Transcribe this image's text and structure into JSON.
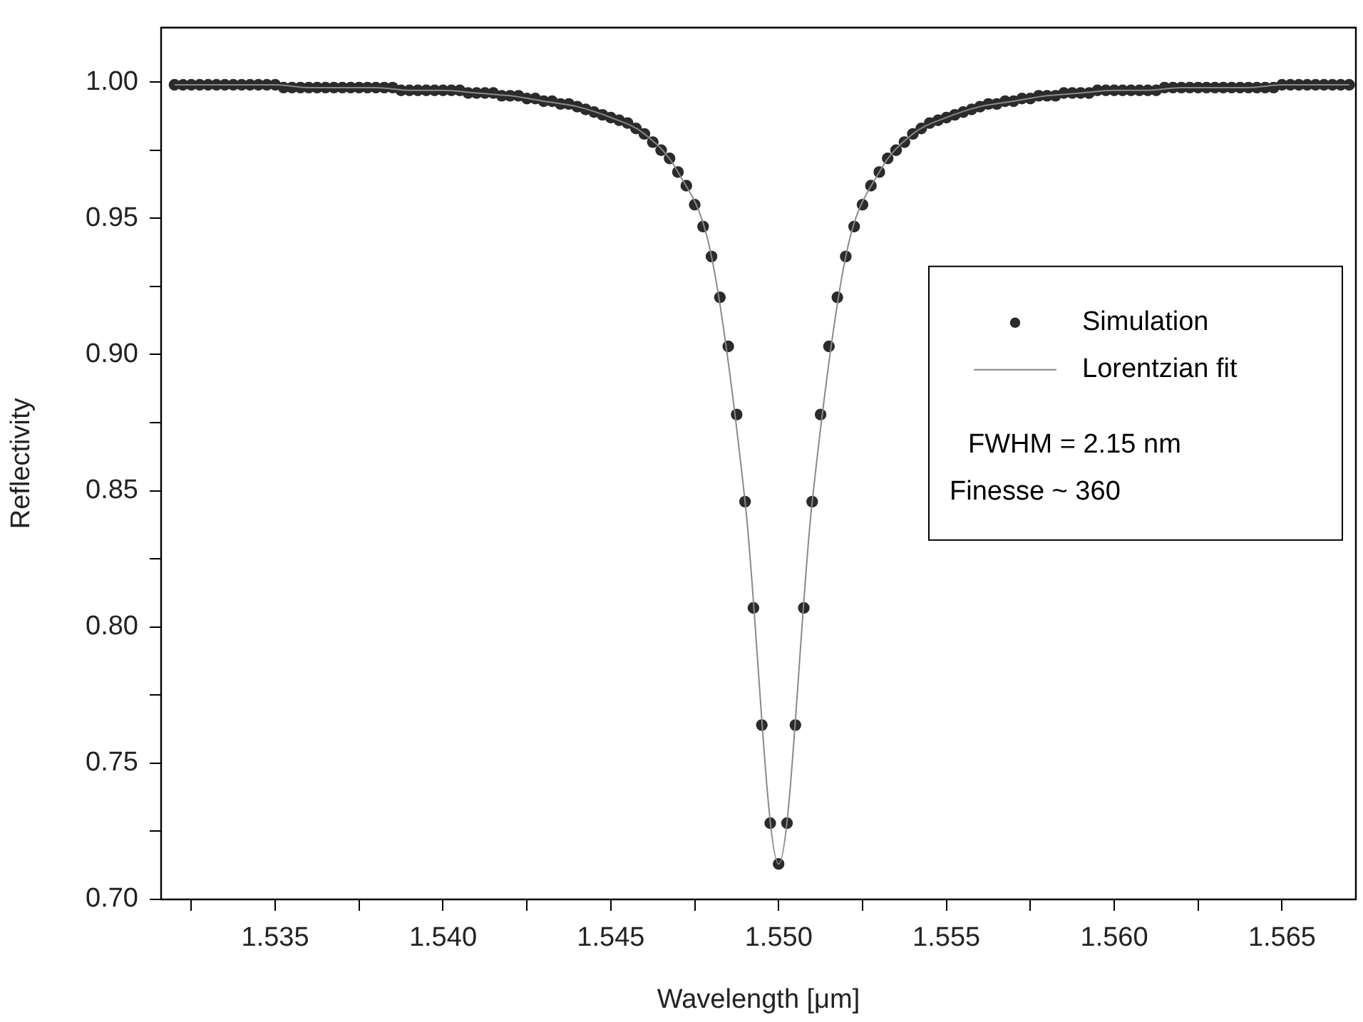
{
  "chart_data": {
    "type": "scatter",
    "xlabel": "Wavelength [μm]",
    "ylabel": "Reflectivity",
    "xlim": [
      1.5316,
      1.5672
    ],
    "ylim": [
      0.7,
      1.02
    ],
    "xticks": [
      {
        "value": 1.5325,
        "label": null
      },
      1.535,
      {
        "value": 1.5375,
        "label": null
      },
      {
        "value": 1.54,
        "label": "1.540"
      },
      {
        "value": 1.5425,
        "label": null
      },
      1.545,
      {
        "value": 1.5475,
        "label": null
      },
      {
        "value": 1.55,
        "label": "1.550"
      },
      {
        "value": 1.5525,
        "label": null
      },
      1.555,
      {
        "value": 1.5575,
        "label": null
      },
      {
        "value": 1.56,
        "label": "1.560"
      },
      {
        "value": 1.5625,
        "label": null
      },
      1.565
    ],
    "yticks": [
      {
        "value": 0.7,
        "label": "0.70"
      },
      {
        "value": 0.725,
        "label": null
      },
      0.75,
      {
        "value": 0.775,
        "label": null
      },
      {
        "value": 0.8,
        "label": "0.80"
      },
      {
        "value": 0.825,
        "label": null
      },
      0.85,
      {
        "value": 0.875,
        "label": null
      },
      {
        "value": 0.9,
        "label": "0.90"
      },
      {
        "value": 0.925,
        "label": null
      },
      0.95,
      {
        "value": 0.975,
        "label": null
      },
      {
        "value": 1,
        "label": "1.00"
      }
    ],
    "grid": false,
    "legend": "right",
    "annotations": [
      "FWHM = 2.15 nm",
      "Finesse ~ 360"
    ],
    "series": [
      {
        "name": "Simulation",
        "type": "scatter",
        "marker": "circle",
        "color": "#2b2b2b",
        "x": [
          1.532,
          1.53225,
          1.5325,
          1.53275,
          1.533,
          1.53325,
          1.5335,
          1.53375,
          1.534,
          1.53425,
          1.5345,
          1.53475,
          1.535,
          1.53525,
          1.5355,
          1.53575,
          1.536,
          1.53625,
          1.5365,
          1.53675,
          1.537,
          1.53725,
          1.5375,
          1.53775,
          1.538,
          1.53825,
          1.5385,
          1.53875,
          1.539,
          1.53925,
          1.5395,
          1.53975,
          1.54,
          1.54025,
          1.5405,
          1.54075,
          1.541,
          1.54125,
          1.5415,
          1.54175,
          1.542,
          1.54225,
          1.5425,
          1.54275,
          1.543,
          1.54325,
          1.5435,
          1.54375,
          1.544,
          1.54425,
          1.5445,
          1.54475,
          1.545,
          1.54525,
          1.5455,
          1.54575,
          1.546,
          1.54625,
          1.5465,
          1.54675,
          1.547,
          1.54725,
          1.5475,
          1.54775,
          1.548,
          1.54825,
          1.5485,
          1.54875,
          1.549,
          1.54925,
          1.5495,
          1.54975,
          1.55,
          1.55025,
          1.5505,
          1.55075,
          1.551,
          1.55125,
          1.5515,
          1.55175,
          1.552,
          1.55225,
          1.5525,
          1.55275,
          1.553,
          1.55325,
          1.5535,
          1.55375,
          1.554,
          1.55425,
          1.5545,
          1.55475,
          1.555,
          1.55525,
          1.5555,
          1.55575,
          1.556,
          1.55625,
          1.5565,
          1.55675,
          1.557,
          1.55725,
          1.5575,
          1.55775,
          1.558,
          1.55825,
          1.5585,
          1.55875,
          1.559,
          1.55925,
          1.5595,
          1.55975,
          1.56,
          1.56025,
          1.5605,
          1.56075,
          1.561,
          1.56125,
          1.5615,
          1.56175,
          1.562,
          1.56225,
          1.5625,
          1.56275,
          1.563,
          1.56325,
          1.5635,
          1.56375,
          1.564,
          1.56425,
          1.5645,
          1.56475,
          1.565,
          1.56525,
          1.5655,
          1.56575,
          1.566,
          1.56625,
          1.5665,
          1.56675,
          1.567
        ],
        "values": [
          0.999,
          0.999,
          0.999,
          0.999,
          0.999,
          0.999,
          0.999,
          0.999,
          0.999,
          0.999,
          0.999,
          0.999,
          0.999,
          0.998,
          0.998,
          0.998,
          0.998,
          0.998,
          0.998,
          0.998,
          0.998,
          0.998,
          0.998,
          0.998,
          0.998,
          0.998,
          0.998,
          0.997,
          0.997,
          0.997,
          0.997,
          0.997,
          0.997,
          0.997,
          0.997,
          0.996,
          0.996,
          0.996,
          0.996,
          0.995,
          0.995,
          0.995,
          0.994,
          0.994,
          0.993,
          0.993,
          0.992,
          0.992,
          0.991,
          0.99,
          0.989,
          0.988,
          0.987,
          0.986,
          0.985,
          0.983,
          0.981,
          0.978,
          0.975,
          0.972,
          0.967,
          0.962,
          0.955,
          0.947,
          0.936,
          0.921,
          0.903,
          0.878,
          0.846,
          0.807,
          0.764,
          0.728,
          0.713,
          0.728,
          0.764,
          0.807,
          0.846,
          0.878,
          0.903,
          0.921,
          0.936,
          0.947,
          0.955,
          0.962,
          0.967,
          0.972,
          0.975,
          0.978,
          0.981,
          0.983,
          0.985,
          0.986,
          0.987,
          0.988,
          0.989,
          0.99,
          0.991,
          0.992,
          0.992,
          0.993,
          0.993,
          0.994,
          0.994,
          0.995,
          0.995,
          0.995,
          0.996,
          0.996,
          0.996,
          0.996,
          0.997,
          0.997,
          0.997,
          0.997,
          0.997,
          0.997,
          0.997,
          0.997,
          0.998,
          0.998,
          0.998,
          0.998,
          0.998,
          0.998,
          0.998,
          0.998,
          0.998,
          0.998,
          0.998,
          0.998,
          0.998,
          0.998,
          0.999,
          0.999,
          0.999,
          0.999,
          0.999,
          0.999,
          0.999,
          0.999,
          0.999
        ]
      },
      {
        "name": "Lorentzian fit",
        "type": "line",
        "marker": "none",
        "line_style": "solid",
        "color": "#8a8a8a",
        "x": [
          1.532,
          1.533,
          1.534,
          1.535,
          1.536,
          1.537,
          1.538,
          1.539,
          1.54,
          1.541,
          1.542,
          1.543,
          1.544,
          1.545,
          1.546,
          1.547,
          1.548,
          1.549,
          1.55,
          1.551,
          1.552,
          1.553,
          1.554,
          1.555,
          1.556,
          1.557,
          1.558,
          1.559,
          1.56,
          1.561,
          1.562,
          1.563,
          1.564,
          1.565,
          1.566,
          1.567
        ],
        "values": [
          0.999,
          0.999,
          0.999,
          0.999,
          0.998,
          0.998,
          0.998,
          0.997,
          0.997,
          0.996,
          0.995,
          0.993,
          0.991,
          0.987,
          0.981,
          0.967,
          0.936,
          0.846,
          0.713,
          0.846,
          0.936,
          0.967,
          0.981,
          0.987,
          0.991,
          0.993,
          0.995,
          0.996,
          0.997,
          0.997,
          0.998,
          0.998,
          0.998,
          0.999,
          0.999,
          0.999
        ]
      }
    ]
  }
}
